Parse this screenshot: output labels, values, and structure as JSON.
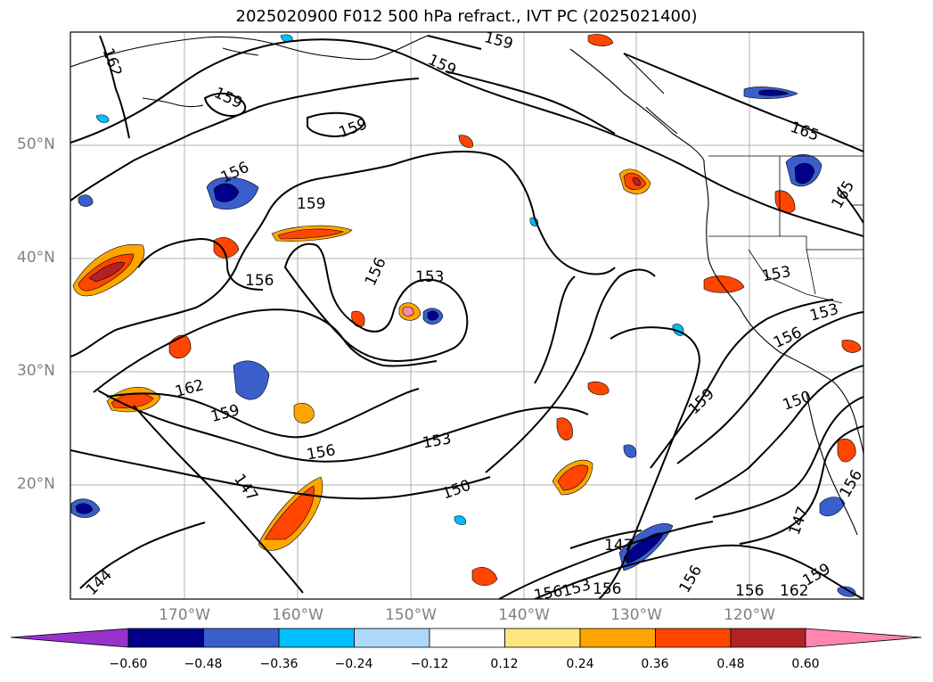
{
  "title": "2025020900 F012 500 hPa refract., IVT PC (2025021400)",
  "map": {
    "lat_labels": [
      "50°N",
      "40°N",
      "30°N",
      "20°N"
    ],
    "lon_labels": [
      "170°W",
      "160°W",
      "150°W",
      "140°W",
      "130°W",
      "120°W"
    ],
    "contour_labels": [
      "162",
      "159",
      "159",
      "159",
      "159",
      "165",
      "165",
      "156",
      "159",
      "156",
      "156",
      "153",
      "153",
      "153",
      "156",
      "162",
      "159",
      "156",
      "153",
      "159",
      "150",
      "150",
      "147",
      "147",
      "147",
      "156",
      "156",
      "153",
      "156",
      "156",
      "162",
      "159",
      "144",
      "156"
    ]
  },
  "colorbar": {
    "tick_labels": [
      "−0.60",
      "−0.48",
      "−0.36",
      "−0.24",
      "−0.12",
      "0.12",
      "0.24",
      "0.36",
      "0.48",
      "0.60"
    ],
    "colors": [
      "#9932cc",
      "#00008b",
      "#3a5fcd",
      "#00bfff",
      "#add8f8",
      "#ffffff",
      "#ffe680",
      "#ffa500",
      "#ff4500",
      "#b22222",
      "#ff85b3"
    ]
  }
}
